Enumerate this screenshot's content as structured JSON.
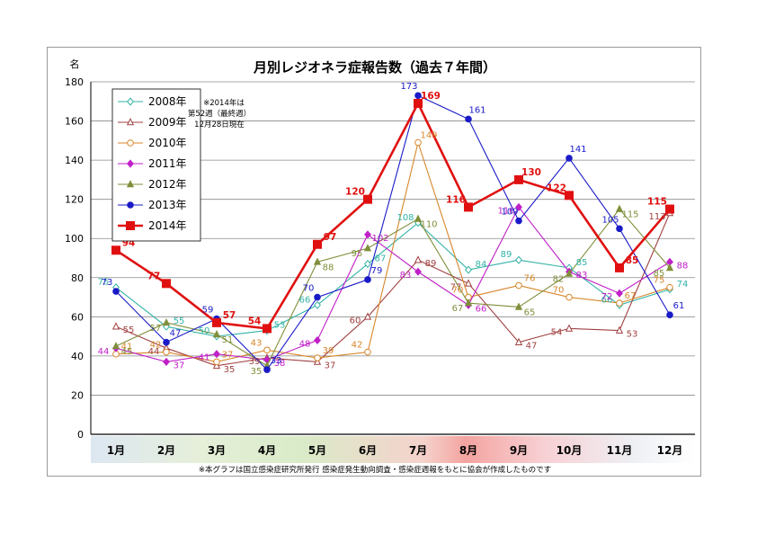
{
  "chart_data": {
    "type": "line",
    "title": "月別レジオネラ症報告数（過去７年間）",
    "ylabel": "名",
    "ylim": [
      0,
      180
    ],
    "yticks": [
      "0",
      "20",
      "40",
      "60",
      "80",
      "100",
      "120",
      "140",
      "160",
      "180"
    ],
    "categories": [
      "1月",
      "2月",
      "3月",
      "4月",
      "5月",
      "6月",
      "7月",
      "8月",
      "9月",
      "10月",
      "11月",
      "12月"
    ],
    "grid": true,
    "legend_position": "top-left",
    "note": [
      "※2014年は",
      "第52週（最終週）",
      "12月28日現在"
    ],
    "footnote": "※本グラフは国立感染症研究所発行 感染症発生動向調査・感染症週報をもとに協会が作成したものです",
    "series": [
      {
        "name": "2008年",
        "color": "#33b3a6",
        "marker": "diamond-open",
        "values": [
          75,
          55,
          50,
          53,
          66,
          87,
          108,
          84,
          89,
          85,
          66,
          74
        ]
      },
      {
        "name": "2009年",
        "color": "#a04040",
        "marker": "triangle-open",
        "values": [
          55,
          44,
          35,
          39,
          37,
          60,
          89,
          77,
          47,
          54,
          53,
          113
        ]
      },
      {
        "name": "2010年",
        "color": "#d8862a",
        "marker": "circle-open",
        "values": [
          41,
          42,
          37,
          43,
          39,
          42,
          149,
          70,
          76,
          70,
          67,
          75
        ]
      },
      {
        "name": "2011年",
        "color": "#c020c8",
        "marker": "diamond",
        "values": [
          44,
          37,
          41,
          38,
          48,
          102,
          83,
          66,
          116,
          83,
          72,
          88
        ]
      },
      {
        "name": "2012年",
        "color": "#7f8f3a",
        "marker": "triangle",
        "values": [
          45,
          57,
          51,
          35,
          88,
          95,
          110,
          67,
          65,
          82,
          115,
          85
        ]
      },
      {
        "name": "2013年",
        "color": "#1a1ac8",
        "marker": "circle",
        "values": [
          73,
          47,
          59,
          33,
          70,
          79,
          173,
          161,
          109,
          141,
          105,
          61
        ]
      },
      {
        "name": "2014年",
        "color": "#e01010",
        "marker": "square",
        "bold": true,
        "values": [
          94,
          77,
          57,
          54,
          97,
          120,
          169,
          116,
          130,
          122,
          85,
          115
        ]
      }
    ]
  }
}
